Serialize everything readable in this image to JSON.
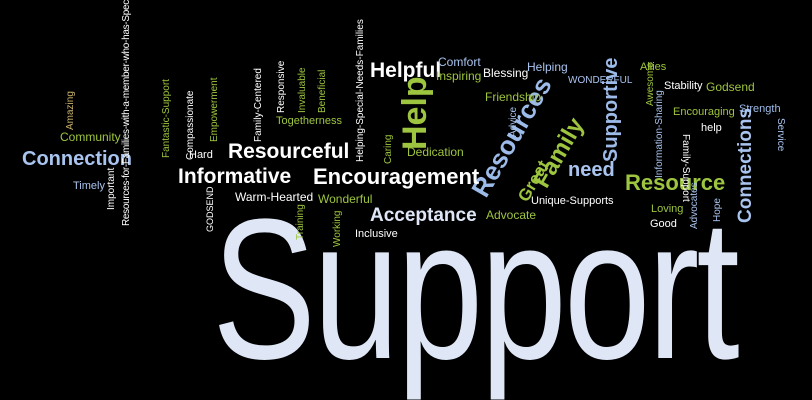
{
  "colors": {
    "background": "#000000",
    "blue": "#a9c4ef",
    "pale": "#dfe7f7",
    "green": "#9ec53f",
    "lime": "#b5d55b",
    "gold": "#c9a84a"
  },
  "words": {
    "support": "Support",
    "helpful": "Helpful",
    "comfort": "Comfort",
    "inspiring": "Inspiring",
    "blessing": "Blessing",
    "helping": "Helping",
    "wonderful_caps": "WONDERFUL",
    "allies": "Allies",
    "awesome": "Awesome",
    "stability": "Stability",
    "godsend": "Godsend",
    "strength": "Strength",
    "encouraging": "Encouraging",
    "help_small": "help",
    "service": "Service",
    "connections": "Connections",
    "resource": "Resource",
    "need": "need",
    "supportive": "Supportive",
    "family": "Family",
    "great": "Great",
    "resources": "Resources",
    "help_big": "Help",
    "friendship": "Friendship",
    "advice": "Advice",
    "helping_special": "Helping-Special-Needs-Families",
    "dedication": "Dedication",
    "caring": "Caring",
    "encouragement": "Encouragement",
    "informative": "Informative",
    "resourceful": "Resourceful",
    "togetherness": "Togetherness",
    "responsive": "Responsive",
    "invaluable": "Invaluable",
    "beneficial": "Beneficial",
    "family_centered": "Family-Centered",
    "empowerment": "Empowerment",
    "compassionate": "Compassionate",
    "fantastic_support": "Fantastic-Support",
    "hard": "Hard",
    "warm_hearted": "Warm-Hearted",
    "wonderful": "Wonderful",
    "acceptance": "Acceptance",
    "advocate": "Advocate",
    "unique_supports": "Unique-Supports",
    "inclusive": "Inclusive",
    "working": "Working",
    "training": "Training",
    "godsend_caps": "GODSEND",
    "connection": "Connection",
    "community": "Community",
    "amazing": "Amazing",
    "timely": "Timely",
    "important": "Important",
    "resources_for_families": "Resources-for-Families-with-a-member-who-has-Special-Needs",
    "loving": "Loving",
    "good": "Good",
    "advocates": "Advocates",
    "hope": "Hope",
    "information_sharing": "Information-Sharing",
    "family_support": "Family-Support"
  }
}
